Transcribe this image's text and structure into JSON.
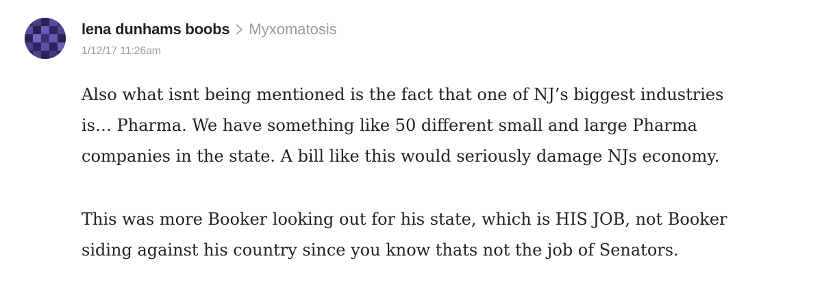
{
  "post": {
    "author": "lena dunhams boobs",
    "separator_icon": "chevron-right-icon",
    "blog": "Myxomatosis",
    "timestamp": "1/12/17 11:26am",
    "paragraphs": [
      {
        "lines": [
          "Also what isnt being mentioned is the fact that one of NJ’s biggest industries",
          "is… Pharma. We have something like 50 different small and large Pharma",
          "companies in the state. A bill like this would seriously damage NJs economy."
        ]
      },
      {
        "lines": [
          "This was more Booker looking out for his state, which is HIS JOB, not Booker",
          "siding against his country since you know thats not the job of Senators."
        ]
      }
    ]
  },
  "colors": {
    "text": "#222222",
    "muted": "#9a9a9a",
    "avatar_base": "#2a2150"
  }
}
